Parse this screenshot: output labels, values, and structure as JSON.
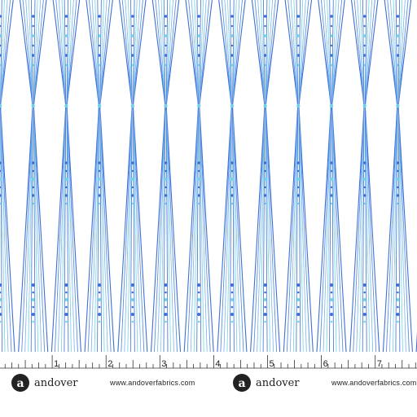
{
  "ruler": {
    "labels": [
      1,
      2,
      3,
      4,
      5,
      6,
      7
    ]
  },
  "footer": {
    "items": [
      {
        "logo": "a",
        "brand": "andover",
        "url": "www.andoverfabrics.com"
      },
      {
        "logo": "a",
        "brand": "andover",
        "url": "www.andoverfabrics.com"
      }
    ]
  }
}
